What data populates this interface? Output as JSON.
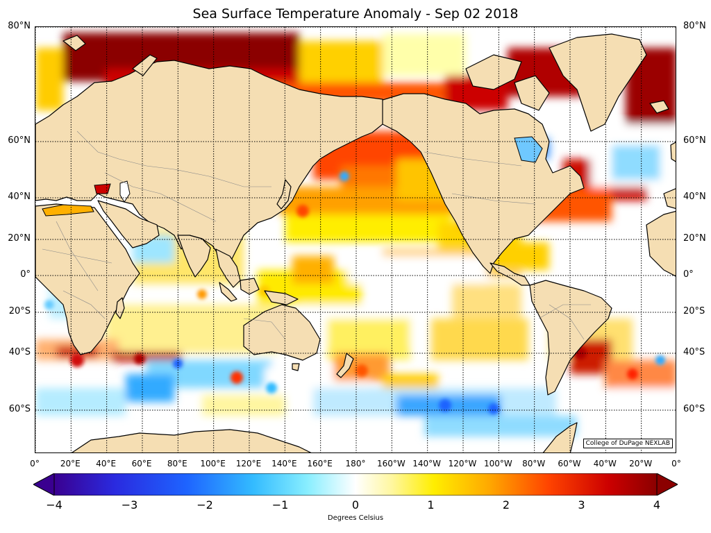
{
  "title": "Sea Surface Temperature Anomaly - Sep 02 2018",
  "credit": "College of DuPage NEXLAB",
  "colorbar_label": "Degrees Celsius",
  "lat_labels": [
    "80°N",
    "60°N",
    "40°N",
    "20°N",
    "0°",
    "20°S",
    "40°S",
    "60°S"
  ],
  "lat_values": [
    80,
    60,
    40,
    20,
    0,
    -20,
    -40,
    -60
  ],
  "lon_labels": [
    "0°",
    "20°E",
    "40°E",
    "60°E",
    "80°E",
    "100°E",
    "120°E",
    "140°E",
    "160°E",
    "180°",
    "160°W",
    "140°W",
    "120°W",
    "100°W",
    "80°W",
    "60°W",
    "40°W",
    "20°W",
    "0°"
  ],
  "colorbar_ticks": [
    "−4",
    "−3",
    "−2",
    "−1",
    "0",
    "1",
    "2",
    "3",
    "4"
  ],
  "colorbar_range": [
    -4,
    4
  ],
  "colors": {
    "land": "#f5deb3",
    "coast": "#000000",
    "ocean_neutral": "#ffffff",
    "warm_light": "#ffff00",
    "warm_mid": "#ff8c00",
    "warm_strong": "#cc0000",
    "warm_extreme": "#8b0000",
    "cool_light": "#aee8ff",
    "cool_mid": "#33bbff",
    "cool_strong": "#1e64ff",
    "cool_extreme": "#3a0090"
  }
}
